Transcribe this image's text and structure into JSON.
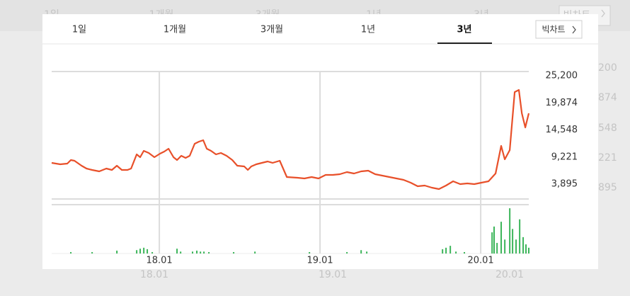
{
  "tabs": [
    "1일",
    "1개월",
    "3개월",
    "1년",
    "3년"
  ],
  "selected_tab_index": 4,
  "button": "빅차트",
  "background": {
    "tabs": [
      "1일",
      "1개월",
      "3개월",
      "1년",
      "3년"
    ],
    "button": "빅차트",
    "axis_labels": [
      "200",
      "874",
      "548",
      "221",
      "895"
    ],
    "date_labels": [
      "18.01",
      "19.01",
      "20.01"
    ]
  },
  "chart_data": {
    "type": "line",
    "x": [
      -8.04,
      -7.4,
      -6.87,
      -6.61,
      -6.34,
      -5.81,
      -5.44,
      -5.02,
      -4.49,
      -3.96,
      -3.54,
      -3.17,
      -2.8,
      -2.38,
      -2.11,
      -1.69,
      -1.43,
      -1.16,
      -0.79,
      -0.37,
      0.05,
      0.37,
      0.69,
      1.06,
      1.32,
      1.64,
      1.96,
      2.27,
      2.64,
      2.96,
      3.28,
      3.54,
      3.86,
      4.23,
      4.6,
      5.02,
      5.45,
      5.82,
      6.34,
      6.61,
      6.87,
      7.24,
      7.66,
      8.09,
      8.46,
      8.99,
      9.52,
      10.31,
      10.84,
      11.37,
      11.89,
      12.42,
      12.95,
      13.48,
      14.01,
      14.54,
      15.07,
      15.6,
      16.12,
      16.65,
      17.18,
      17.71,
      18.24,
      18.77,
      19.29,
      19.82,
      20.35,
      20.88,
      21.41,
      21.94,
      22.47,
      23.0,
      23.52,
      24.05,
      24.58,
      25.11,
      25.53,
      25.8,
      26.17,
      26.54,
      26.85,
      27.07,
      27.33,
      27.59
    ],
    "series": [
      {
        "color": "#e8502a",
        "values": [
          8072,
          7794,
          7933,
          8630,
          8490,
          7515,
          6958,
          6680,
          6401,
          6958,
          6680,
          7515,
          6680,
          6680,
          6958,
          9743,
          9186,
          10440,
          10022,
          9186,
          9882,
          10300,
          10857,
          9186,
          8630,
          9465,
          9047,
          9465,
          11832,
          12250,
          12529,
          10857,
          10440,
          9743,
          10022,
          9465,
          8630,
          7515,
          7376,
          6680,
          7376,
          7794,
          8072,
          8351,
          8072,
          8490,
          5287,
          5148,
          5009,
          5287,
          5009,
          5705,
          5705,
          5845,
          6262,
          5984,
          6401,
          6541,
          5845,
          5566,
          5287,
          5009,
          4730,
          4173,
          3477,
          3616,
          3199,
          2920,
          3616,
          4452,
          3895,
          4034,
          3895,
          4173,
          4452,
          5984,
          11414,
          8768,
          10578,
          21997,
          22415,
          17820,
          15035,
          17820
        ]
      }
    ],
    "xlim": [
      -8.04,
      27.59
    ],
    "ylim": [
      970,
      26040
    ],
    "xticks": [
      {
        "value": 0,
        "label": "18.01"
      },
      {
        "value": 12,
        "label": "19.01"
      },
      {
        "value": 24,
        "label": "20.01"
      }
    ],
    "yticks": [
      {
        "value": 25200,
        "label": "25,200"
      },
      {
        "value": 19874,
        "label": "19,874"
      },
      {
        "value": 14548,
        "label": "14,548"
      },
      {
        "value": 9221,
        "label": "9,221"
      },
      {
        "value": 3895,
        "label": "3,895"
      }
    ],
    "grid": "x",
    "volume": {
      "color": "#3cb55a",
      "ylim": [
        0,
        100
      ],
      "x": [
        -6.61,
        -5.02,
        -3.17,
        -1.69,
        -1.43,
        -1.16,
        -0.9,
        -0.53,
        1.32,
        1.59,
        2.48,
        2.8,
        3.07,
        3.33,
        3.7,
        5.55,
        7.14,
        11.21,
        14.01,
        15.07,
        15.49,
        21.15,
        21.41,
        21.73,
        22.15,
        22.78,
        24.85,
        25.0,
        25.22,
        25.53,
        25.8,
        26.17,
        26.38,
        26.64,
        26.91,
        27.17,
        27.38,
        27.59
      ],
      "values": [
        3,
        3,
        6,
        7,
        10,
        12,
        9,
        3,
        10,
        4,
        4,
        6,
        4,
        4,
        3,
        3,
        4,
        3,
        3,
        7,
        4,
        9,
        12,
        16,
        4,
        3,
        44,
        56,
        22,
        66,
        29,
        94,
        51,
        29,
        71,
        34,
        19,
        12
      ]
    }
  }
}
